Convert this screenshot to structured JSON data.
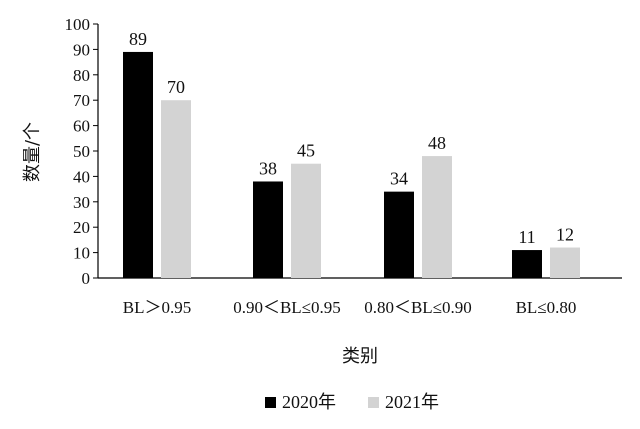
{
  "chart_data": {
    "type": "bar",
    "title": "",
    "xlabel": "类别",
    "ylabel": "数量/个",
    "ylim": [
      0,
      100
    ],
    "yticks": [
      0,
      10,
      20,
      30,
      40,
      50,
      60,
      70,
      80,
      90,
      100
    ],
    "categories": [
      "BL＞0.95",
      "0.90＜BL≤0.95",
      "0.80＜BL≤0.90",
      "BL≤0.80"
    ],
    "series": [
      {
        "name": "2020年",
        "values": [
          89,
          38,
          34,
          11
        ],
        "color": "#000000"
      },
      {
        "name": "2021年",
        "values": [
          70,
          45,
          48,
          12
        ],
        "color": "#d3d3d3"
      }
    ],
    "grid": false,
    "legend_position": "bottom-center"
  }
}
